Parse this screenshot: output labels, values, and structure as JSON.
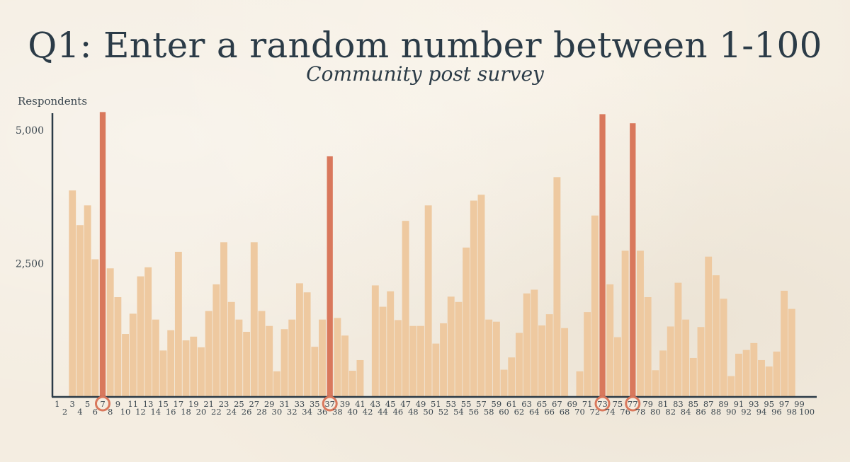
{
  "chart_data": {
    "type": "bar",
    "title": "Q1: Enter a random number between 1-100",
    "subtitle": "Community post survey",
    "ylabel": "Respondents",
    "xlabel": "",
    "ylim": [
      0,
      5300
    ],
    "yticks": [
      2500,
      5000
    ],
    "ytick_labels": [
      "2,500",
      "5,000"
    ],
    "grid": false,
    "categories": [
      1,
      2,
      3,
      4,
      5,
      6,
      7,
      8,
      9,
      10,
      11,
      12,
      13,
      14,
      15,
      16,
      17,
      18,
      19,
      20,
      21,
      22,
      23,
      24,
      25,
      26,
      27,
      28,
      29,
      30,
      31,
      32,
      33,
      34,
      35,
      36,
      37,
      38,
      39,
      40,
      41,
      42,
      43,
      44,
      45,
      46,
      47,
      48,
      49,
      50,
      51,
      52,
      53,
      54,
      55,
      56,
      57,
      58,
      59,
      60,
      61,
      62,
      63,
      64,
      65,
      66,
      67,
      68,
      69,
      70,
      71,
      72,
      73,
      74,
      75,
      76,
      77,
      78,
      79,
      80,
      81,
      82,
      83,
      84,
      85,
      86,
      87,
      88,
      89,
      90,
      91,
      92,
      93,
      94,
      95,
      96,
      97,
      98,
      99,
      100
    ],
    "values": [
      0,
      0,
      3870,
      3220,
      3590,
      2580,
      5340,
      2410,
      1870,
      1180,
      1560,
      2260,
      2430,
      1450,
      870,
      1250,
      2720,
      1060,
      1130,
      930,
      1610,
      2110,
      2900,
      1780,
      1450,
      1220,
      2900,
      1610,
      1330,
      480,
      1270,
      1450,
      2130,
      1960,
      940,
      1450,
      4510,
      1480,
      1150,
      490,
      690,
      0,
      2090,
      1690,
      1980,
      1440,
      3300,
      1330,
      1330,
      3590,
      1000,
      1380,
      1880,
      1780,
      2800,
      3680,
      3790,
      1450,
      1410,
      510,
      740,
      1200,
      1940,
      2010,
      1340,
      1550,
      4120,
      1290,
      0,
      480,
      1590,
      3400,
      5300,
      2110,
      1120,
      2740,
      5130,
      2740,
      1870,
      500,
      870,
      1320,
      2140,
      1450,
      730,
      1310,
      2630,
      2280,
      1840,
      390,
      810,
      880,
      1010,
      690,
      570,
      850,
      1990,
      1650,
      0,
      0
    ],
    "highlighted": [
      7,
      37,
      73,
      77
    ],
    "colors": {
      "bar": "#eec9a0",
      "highlight": "#d9785c",
      "highlight_circle": "#d9785c",
      "axis": "#2b3b47"
    }
  }
}
